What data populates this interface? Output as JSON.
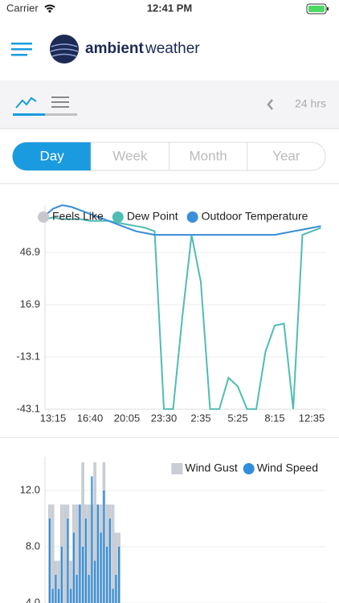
{
  "status_bar": {
    "carrier": "Carrier",
    "time": "12:41 PM"
  },
  "header": {
    "brand_bold": "ambient",
    "brand_light": "weather"
  },
  "toolbar": {
    "range": "24 hrs"
  },
  "tabs": [
    "Day",
    "Week",
    "Month",
    "Year"
  ],
  "selected_tab": "Day",
  "chart_data": [
    {
      "type": "line",
      "categories": [
        null,
        "13:15",
        null,
        null,
        null,
        "16:40",
        null,
        null,
        null,
        "20:05",
        null,
        null,
        null,
        "23:30",
        null,
        null,
        null,
        "2:35",
        null,
        null,
        null,
        "5:25",
        null,
        null,
        null,
        "8:15",
        null,
        null,
        null,
        "12:35",
        null
      ],
      "series": [
        {
          "name": "Feels Like",
          "color": "#c8c8cc",
          "values": [
            68,
            72,
            74,
            73,
            71,
            69,
            67,
            65,
            63,
            61,
            59,
            58,
            57,
            57,
            57,
            57,
            57,
            57,
            57,
            57,
            57,
            57,
            57,
            57,
            57,
            57,
            58,
            59,
            60,
            61,
            62
          ]
        },
        {
          "name": "Dew Point",
          "color": "#4fbdb3",
          "values": [
            66,
            67,
            66,
            66,
            66,
            65,
            65,
            65,
            64,
            63,
            62,
            61,
            59,
            -43,
            -43,
            10,
            57,
            30,
            -43,
            -43,
            -25,
            -30,
            -43,
            -43,
            -10,
            5,
            6,
            -43,
            57,
            59,
            61
          ]
        },
        {
          "name": "Outdoor Temperature",
          "color": "#3a8fd8",
          "values": [
            68,
            72,
            74,
            73,
            71,
            69,
            67,
            65,
            63,
            61,
            59,
            58,
            57,
            57,
            57,
            57,
            57,
            57,
            57,
            57,
            57,
            57,
            57,
            57,
            57,
            57,
            58,
            59,
            60,
            61,
            62
          ]
        }
      ],
      "ylim": [
        -43.1,
        74.1
      ],
      "yticks": [
        -43.1,
        -13.1,
        16.9,
        46.9
      ],
      "grid": true,
      "legend": "top"
    },
    {
      "type": "bar",
      "series": [
        {
          "name": "Wind Gust",
          "color": "#c9ced6",
          "values": [
            11,
            11,
            7,
            7,
            11,
            11,
            11,
            7,
            11,
            11,
            11,
            14,
            11,
            11,
            11,
            14,
            11,
            11,
            14,
            11,
            11,
            11,
            9,
            9
          ]
        },
        {
          "name": "Wind Speed",
          "color": "#2f8fdc",
          "values": [
            10,
            5,
            6,
            5,
            8,
            4,
            10,
            5,
            9,
            6,
            11,
            8,
            10,
            6,
            13,
            7,
            11,
            9,
            12,
            8,
            10,
            5,
            6,
            8
          ]
        }
      ],
      "ylim": [
        4,
        14.4
      ],
      "yticks": [
        {
          "value": 4,
          "label": "4.0"
        },
        {
          "value": 8,
          "label": "8.0"
        },
        {
          "value": 12,
          "label": "12.0"
        }
      ],
      "grid": true,
      "legend": "top-right"
    }
  ]
}
